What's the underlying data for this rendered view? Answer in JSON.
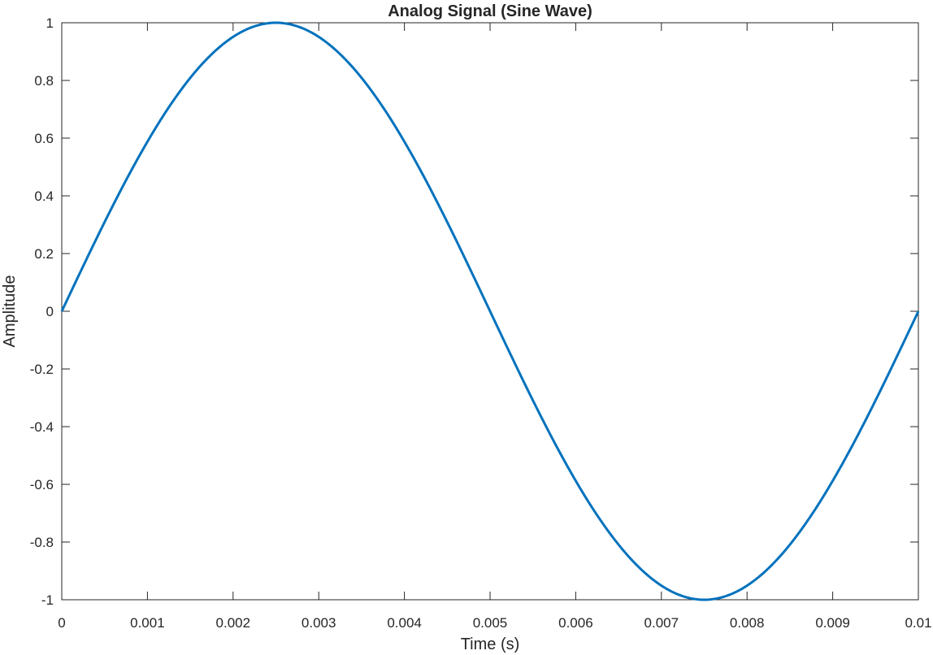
{
  "chart_data": {
    "type": "line",
    "title": "Analog Signal (Sine Wave)",
    "xlabel": "Time (s)",
    "ylabel": "Amplitude",
    "xlim": [
      0,
      0.01
    ],
    "ylim": [
      -1,
      1
    ],
    "grid": false,
    "box": true,
    "x_ticks": [
      0,
      0.001,
      0.002,
      0.003,
      0.004,
      0.005,
      0.006,
      0.007,
      0.008,
      0.009,
      0.01
    ],
    "x_tick_labels": [
      "0",
      "0.001",
      "0.002",
      "0.003",
      "0.004",
      "0.005",
      "0.006",
      "0.007",
      "0.008",
      "0.009",
      "0.01"
    ],
    "y_ticks": [
      1,
      0.8,
      0.6,
      0.4,
      0.2,
      0,
      -0.2,
      -0.4,
      -0.6,
      -0.8,
      -1
    ],
    "y_tick_labels": [
      "1",
      "0.8",
      "0.6",
      "0.4",
      "0.2",
      "0",
      "-0.2",
      "-0.4",
      "-0.6",
      "-0.8",
      "-1"
    ],
    "series": [
      {
        "color": "#0072bd",
        "function": "sin(2*pi*100*t)",
        "frequency_hz": 100,
        "amplitude": 1,
        "x": [
          0,
          0.0005,
          0.001,
          0.0015,
          0.002,
          0.0025,
          0.003,
          0.0035,
          0.004,
          0.0045,
          0.005,
          0.0055,
          0.006,
          0.0065,
          0.007,
          0.0075,
          0.008,
          0.0085,
          0.009,
          0.0095,
          0.01
        ],
        "y": [
          0,
          0.309,
          0.588,
          0.809,
          0.951,
          1,
          0.951,
          0.809,
          0.588,
          0.309,
          0,
          -0.309,
          -0.588,
          -0.809,
          -0.951,
          -1,
          -0.951,
          -0.809,
          -0.588,
          -0.309,
          0
        ]
      }
    ]
  }
}
